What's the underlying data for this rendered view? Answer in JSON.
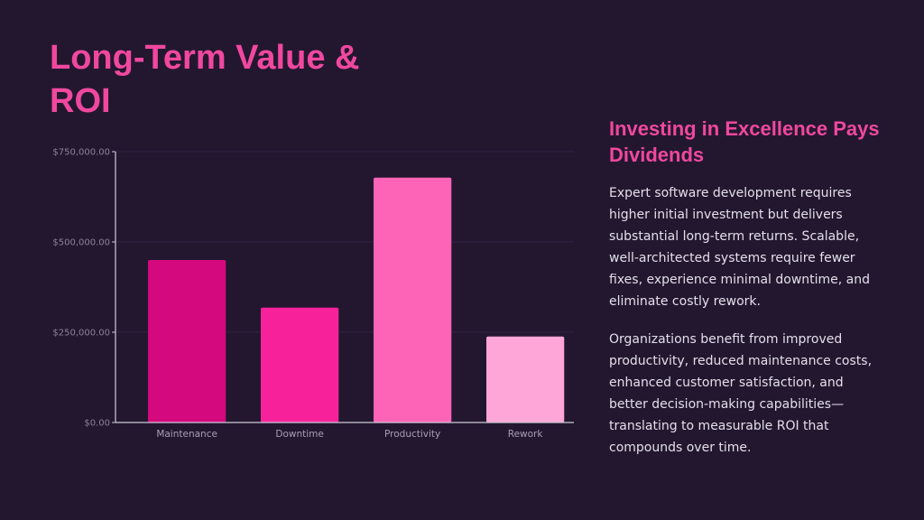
{
  "page": {
    "title": "Long-Term Value & ROI"
  },
  "aside": {
    "heading": "Investing in Excellence Pays Dividends",
    "paragraphs": [
      "Expert software development requires higher initial investment but delivers substantial long-term returns. Scalable, well-architected systems require fewer fixes, experience minimal downtime, and eliminate costly rework.",
      "Organizations benefit from improved productivity, reduced maintenance costs, enhanced customer satisfaction, and better decision-making capabilities—translating to measurable ROI that compounds over time."
    ]
  },
  "chart_data": {
    "type": "bar",
    "title": "",
    "xlabel": "",
    "ylabel": "",
    "categories": [
      "Maintenance",
      "Downtime",
      "Productivity",
      "Rework"
    ],
    "values": [
      450000,
      318000,
      678000,
      238000
    ],
    "ylim": [
      0,
      750000
    ],
    "yticks": [
      0,
      250000,
      500000,
      750000
    ],
    "ytick_labels": [
      "$0.00",
      "$250,000.00",
      "$500,000.00",
      "$750,000.00"
    ],
    "grid": true,
    "legend": "none",
    "bar_colors": [
      "#d3097d",
      "#f7229a",
      "#fd63b7",
      "#fda6d7"
    ],
    "axis_color": "#cfc8d8",
    "grid_color": "#2e2040"
  }
}
